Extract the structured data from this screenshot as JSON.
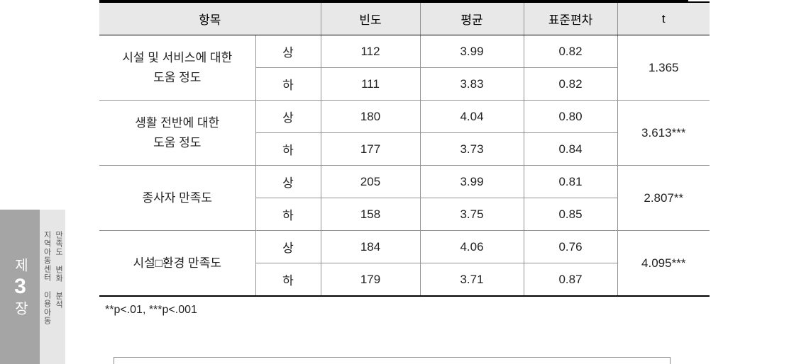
{
  "sidebar": {
    "chapter_prefix": "제",
    "chapter_number": "3",
    "chapter_suffix": "장",
    "line1": "지역아동센터 이용아동",
    "line2": "만족도 변화 분석"
  },
  "table": {
    "headers": {
      "item": "항목",
      "freq": "빈도",
      "mean": "평균",
      "sd": "표준편차",
      "t": "t"
    },
    "levels": {
      "upper": "상",
      "lower": "하"
    },
    "rows": [
      {
        "item_l1": "시설 및 서비스에 대한",
        "item_l2": "도움 정도",
        "upper": {
          "freq": "112",
          "mean": "3.99",
          "sd": "0.82"
        },
        "lower": {
          "freq": "111",
          "mean": "3.83",
          "sd": "0.82"
        },
        "t": "1.365"
      },
      {
        "item_l1": "생활 전반에 대한",
        "item_l2": "도움 정도",
        "upper": {
          "freq": "180",
          "mean": "4.04",
          "sd": "0.80"
        },
        "lower": {
          "freq": "177",
          "mean": "3.73",
          "sd": "0.84"
        },
        "t": "3.613***"
      },
      {
        "item_l1": "종사자 만족도",
        "item_l2": "",
        "upper": {
          "freq": "205",
          "mean": "3.99",
          "sd": "0.81"
        },
        "lower": {
          "freq": "158",
          "mean": "3.75",
          "sd": "0.85"
        },
        "t": "2.807**"
      },
      {
        "item_l1": "시설□환경 만족도",
        "item_l2": "",
        "upper": {
          "freq": "184",
          "mean": "4.06",
          "sd": "0.76"
        },
        "lower": {
          "freq": "179",
          "mean": "3.71",
          "sd": "0.87"
        },
        "t": "4.095***"
      }
    ]
  },
  "footnote": "**p<.01, ***p<.001",
  "styling": {
    "header_bg": "#e8e8e8",
    "border_light": "#939393",
    "border_dark": "#000000",
    "tab_dark_bg": "#a5a5a5",
    "tab_light_bg": "#e6e6e6",
    "body_font_size": 17
  }
}
